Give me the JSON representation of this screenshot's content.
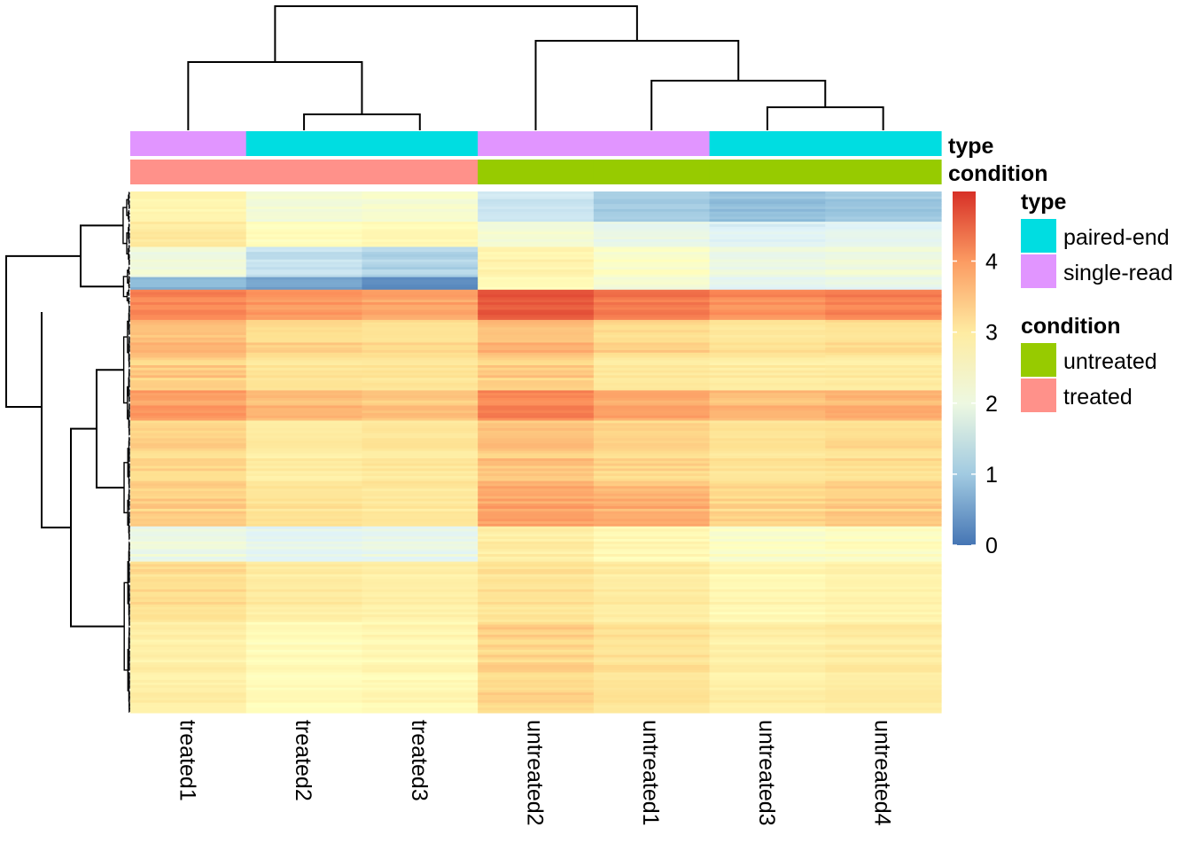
{
  "colors": {
    "paired_end": "#00DDE1",
    "single_read": "#E195FF",
    "untreated": "#97CB00",
    "treated": "#FF918A",
    "heat_low": "#4575B4",
    "heat_mid": "#FFFFBF",
    "heat_high": "#D73027"
  },
  "chart_data": {
    "type": "heatmap",
    "columns": [
      "treated1",
      "treated2",
      "treated3",
      "untreated2",
      "untreated1",
      "untreated3",
      "untreated4"
    ],
    "annotation_rows": [
      "type",
      "condition"
    ],
    "column_annotations": {
      "type": [
        "single-read",
        "paired-end",
        "paired-end",
        "single-read",
        "single-read",
        "paired-end",
        "paired-end"
      ],
      "condition": [
        "treated",
        "treated",
        "treated",
        "untreated",
        "untreated",
        "untreated",
        "untreated"
      ]
    },
    "row_blocks": [
      {
        "rows": 12,
        "values": [
          2.8,
          2.2,
          2.3,
          1.5,
          1.1,
          0.9,
          1.0
        ]
      },
      {
        "rows": 10,
        "values": [
          3.1,
          2.6,
          2.7,
          2.2,
          1.9,
          1.7,
          1.8
        ]
      },
      {
        "rows": 12,
        "values": [
          2.1,
          1.4,
          1.2,
          2.8,
          2.4,
          2.0,
          2.1
        ]
      },
      {
        "rows": 5,
        "values": [
          0.8,
          0.6,
          0.3,
          2.6,
          2.2,
          1.8,
          1.9
        ]
      },
      {
        "rows": 12,
        "values": [
          4.3,
          4.1,
          4.0,
          4.7,
          4.4,
          4.2,
          4.3
        ]
      },
      {
        "rows": 14,
        "values": [
          3.7,
          3.4,
          3.3,
          3.7,
          3.4,
          3.2,
          3.3
        ]
      },
      {
        "rows": 14,
        "values": [
          3.5,
          3.2,
          3.2,
          3.5,
          3.1,
          3.0,
          3.0
        ]
      },
      {
        "rows": 12,
        "values": [
          4.0,
          3.7,
          3.6,
          4.2,
          3.9,
          3.7,
          3.8
        ]
      },
      {
        "rows": 26,
        "values": [
          3.4,
          3.0,
          3.1,
          3.6,
          3.4,
          3.2,
          3.3
        ]
      },
      {
        "rows": 16,
        "values": [
          3.5,
          3.2,
          3.1,
          3.9,
          3.8,
          3.4,
          3.5
        ]
      },
      {
        "rows": 14,
        "values": [
          2.0,
          1.8,
          1.9,
          3.0,
          2.7,
          2.4,
          2.5
        ]
      },
      {
        "rows": 24,
        "values": [
          3.3,
          3.0,
          2.9,
          3.2,
          3.0,
          2.7,
          2.8
        ]
      },
      {
        "rows": 36,
        "values": [
          2.9,
          2.6,
          2.7,
          3.4,
          3.2,
          2.9,
          3.0
        ]
      }
    ],
    "legend_ticks": [
      0,
      1,
      2,
      3,
      4
    ],
    "value_range": [
      0,
      4.98
    ],
    "column_dendrogram": "((treated1,(treated2,treated3)),(untreated2,(untreated1,(untreated3,untreated4))))",
    "row_dendrogram": true,
    "legend_placement": "right"
  },
  "legend": {
    "type_title": "type",
    "type_items": [
      "paired-end",
      "single-read"
    ],
    "condition_title": "condition",
    "condition_items": [
      "untreated",
      "treated"
    ]
  },
  "annotation_labels": {
    "type": "type",
    "condition": "condition"
  }
}
